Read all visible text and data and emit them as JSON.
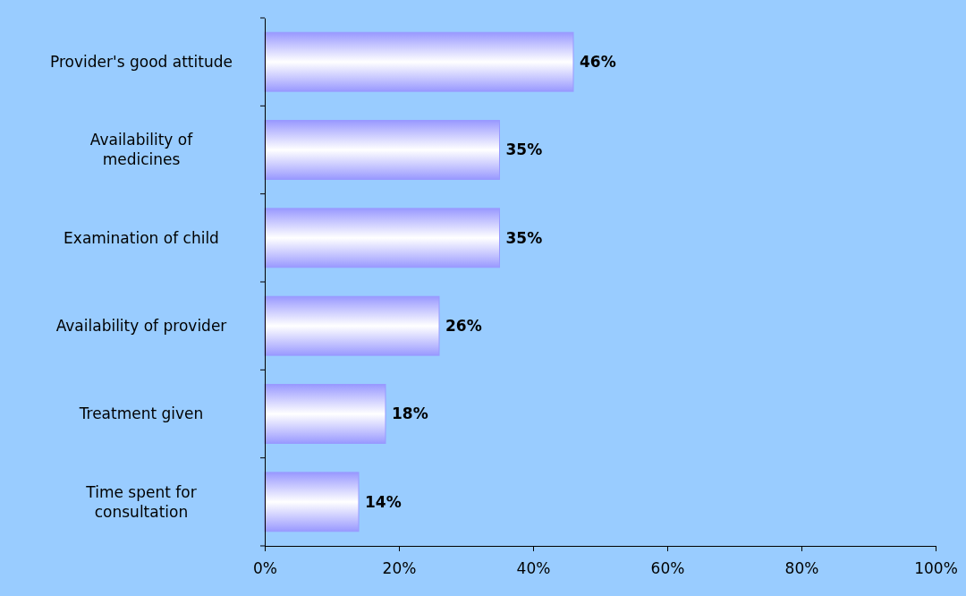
{
  "chart_data": {
    "type": "bar",
    "orientation": "horizontal",
    "categories": [
      "Provider's good attitude",
      "Availability of\nmedicines",
      "Examination of child",
      "Availability of provider",
      "Treatment given",
      "Time spent for\nconsultation"
    ],
    "values": [
      46,
      35,
      35,
      26,
      18,
      14
    ],
    "color": "#9999ff",
    "xlim": [
      0,
      100
    ],
    "xticks": [
      {
        "value": 0,
        "label": "0%"
      },
      {
        "value": 20,
        "label": "20%"
      },
      {
        "value": 40,
        "label": "40%"
      },
      {
        "value": 60,
        "label": "60%"
      },
      {
        "value": 80,
        "label": "80%"
      },
      {
        "value": 100,
        "label": "100%"
      }
    ],
    "value_labels": [
      "46%",
      "35%",
      "35%",
      "26%",
      "18%",
      "14%"
    ],
    "grid": false
  }
}
